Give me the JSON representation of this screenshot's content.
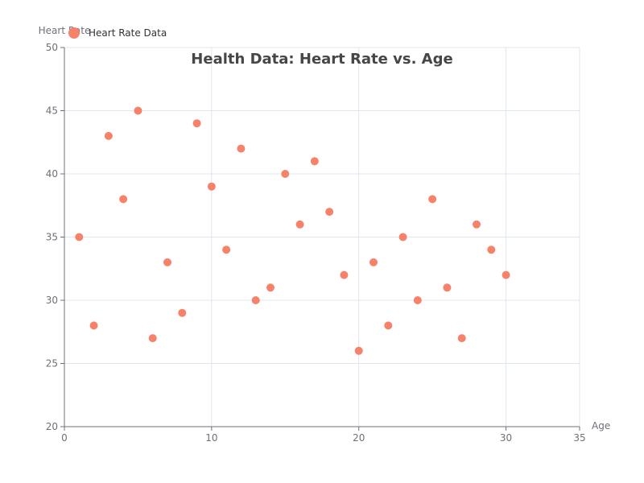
{
  "chart_data": {
    "type": "scatter",
    "title": "Health Data: Heart Rate vs. Age",
    "xlabel": "Age",
    "ylabel": "Heart Rate",
    "xlim": [
      0,
      35
    ],
    "ylim": [
      20,
      50
    ],
    "x_ticks": [
      0,
      10,
      20,
      30,
      35
    ],
    "y_ticks": [
      20,
      25,
      30,
      35,
      40,
      45,
      50
    ],
    "grid": true,
    "legend_position": "top-left",
    "series": [
      {
        "name": "Heart Rate Data",
        "color": "#f7826a",
        "points": [
          [
            1,
            35
          ],
          [
            2,
            28
          ],
          [
            3,
            43
          ],
          [
            4,
            38
          ],
          [
            5,
            45
          ],
          [
            6,
            27
          ],
          [
            7,
            33
          ],
          [
            8,
            29
          ],
          [
            9,
            44
          ],
          [
            10,
            39
          ],
          [
            11,
            34
          ],
          [
            12,
            42
          ],
          [
            13,
            30
          ],
          [
            14,
            31
          ],
          [
            15,
            40
          ],
          [
            16,
            36
          ],
          [
            17,
            41
          ],
          [
            18,
            37
          ],
          [
            19,
            32
          ],
          [
            20,
            26
          ],
          [
            21,
            33
          ],
          [
            22,
            28
          ],
          [
            23,
            35
          ],
          [
            24,
            30
          ],
          [
            25,
            38
          ],
          [
            26,
            31
          ],
          [
            27,
            27
          ],
          [
            28,
            36
          ],
          [
            29,
            34
          ],
          [
            30,
            32
          ]
        ]
      }
    ]
  }
}
